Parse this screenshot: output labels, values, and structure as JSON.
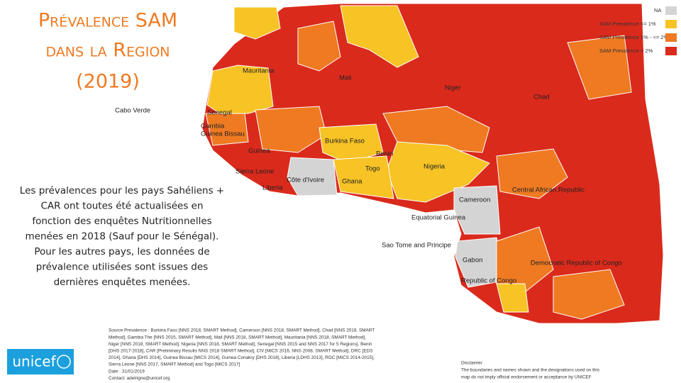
{
  "title": [
    "Prévalence SAM",
    "dans la Region",
    "(2019)"
  ],
  "description": [
    "Les prévalences pour les pays Sahéliens +",
    "CAR ont toutes été actualisées en",
    "fonction des enquêtes Nutritionnelles",
    "menées en 2018 (Sauf pour le Sénégal).",
    "Pour les autres pays, les données de",
    "prévalence utilisées sont issues des",
    "dernières enquêtes menées."
  ],
  "legend": [
    {
      "label": "NA",
      "color": "#d4d4d4"
    },
    {
      "label": "SAM Prevalence <= 1%",
      "color": "#f7c325"
    },
    {
      "label": "SAM Prevalence 1% - <= 2%",
      "color": "#ef7a22"
    },
    {
      "label": "SAM Prevalence > 2%",
      "color": "#da2a1c"
    }
  ],
  "countries": [
    "Mauritania",
    "Mali",
    "Niger",
    "Chad",
    "Cabo Verde",
    "Senegal",
    "Gambia",
    "Guinea Bissau",
    "Burkina Faso",
    "Benin",
    "Guinea",
    "Nigeria",
    "Togo",
    "Sierra Leone",
    "Côte d'Ivoire",
    "Ghana",
    "Liberia",
    "Central African Republic",
    "Cameroon",
    "Equatorial Guinea",
    "Sao Tome and Principe",
    "Gabon",
    "Democratic Republic of Congo",
    "Republic of Congo"
  ],
  "source": [
    "Source Prevalence : Burkina Faso [NNS 2018, SMART Method], Cameroon [NNS 2018, SMART Method], Chad [NNS 2018, SMART",
    "Method], Gambia The [NNS 2015, SMART Method], Mali [NNS 2018, SMART Method], Mauritania [NNS 2018, SMART Method],",
    "Niger [NNS 2018, SMART Method], Nigeria [NNS 2018, SMART Method], Senegal [NNS 2015 and NNS 2017 for 5 Regions], Benin",
    "[DHS 2017-2018], CAR [Preliminary Results NNS 2018 SMART Method], CIV [MICS 2016, NNS 2008, SMART Method], DRC [EDS",
    "2014], Ghana [DHS 2014], Guinea Bissau [MICS 2014], Guinea Conakry [DHS 2018], Liberia [LDHS 2013], ROC [MICS 2014-2015],",
    "Sierra Leone [NNS 2017, SMART Method] and Togo [MICS 2017]",
    "Date : 31/01/2019",
    "Contact: adelrigne@unicef.org"
  ],
  "disclaimer": [
    "Disclaimer",
    "The boundaries and names shown and the designations used on this",
    "map do not imply official endorsement or acceptance by UNICEF"
  ],
  "logo": "unicef"
}
